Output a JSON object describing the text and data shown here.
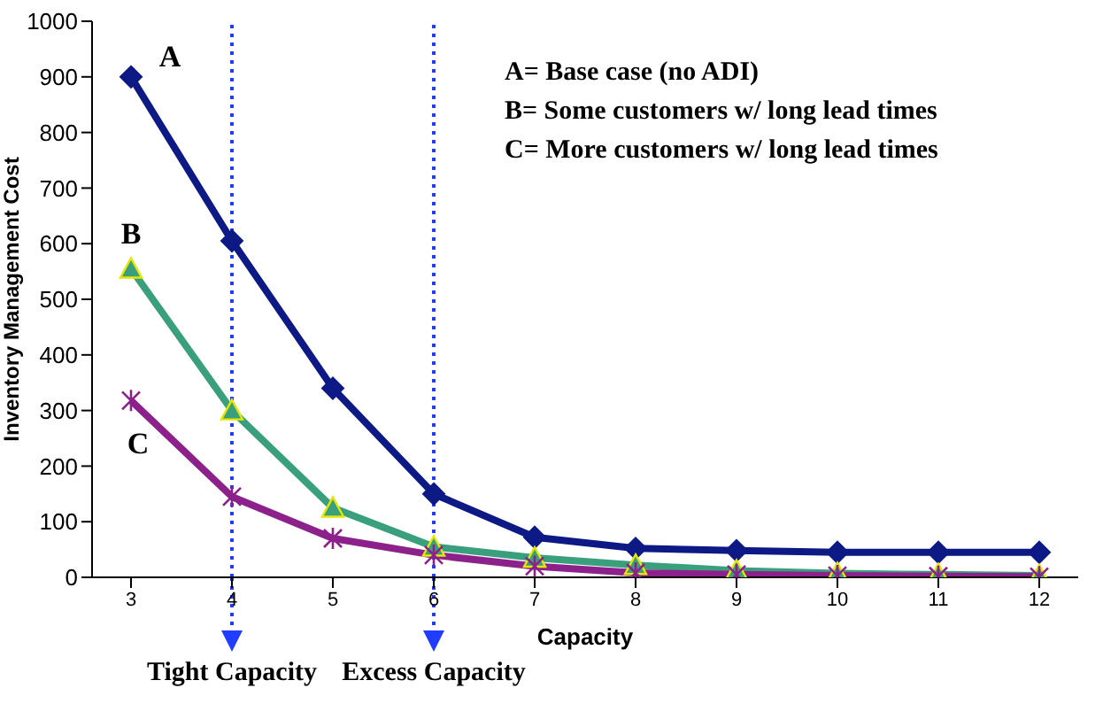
{
  "chart_data": {
    "type": "line",
    "xlabel": "Capacity",
    "ylabel": "Inventory Management Cost",
    "categories": [
      "3",
      "4",
      "5",
      "6",
      "7",
      "8",
      "9",
      "10",
      "11",
      "12"
    ],
    "series": [
      {
        "name": "A",
        "color": "#0d1a85",
        "marker": "diamond",
        "values": [
          900,
          605,
          340,
          150,
          72,
          52,
          48,
          45,
          45,
          45
        ]
      },
      {
        "name": "B",
        "color": "#3a9f7c",
        "marker": "triangle",
        "values": [
          555,
          300,
          125,
          55,
          35,
          22,
          12,
          7,
          5,
          3
        ]
      },
      {
        "name": "C",
        "color": "#8c218c",
        "marker": "cross",
        "values": [
          318,
          145,
          70,
          40,
          20,
          8,
          5,
          3,
          2,
          1
        ]
      }
    ],
    "ylim": [
      0,
      1000
    ],
    "yticks": [
      0,
      100,
      200,
      300,
      400,
      500,
      600,
      700,
      800,
      900,
      1000
    ],
    "grid": false,
    "legend": false,
    "line_style": "solid",
    "ref_lines": [
      {
        "axis": "x",
        "value": "4",
        "label": "Tight Capacity",
        "color": "#1f3cff",
        "line_style": "dotted"
      },
      {
        "axis": "x",
        "value": "6",
        "label": "Excess Capacity",
        "color": "#1f3cff",
        "line_style": "dotted"
      }
    ],
    "annotations": [
      "A= Base case (no ADI)",
      "B= Some customers w/ long lead times",
      "C= More customers w/ long lead times"
    ]
  }
}
